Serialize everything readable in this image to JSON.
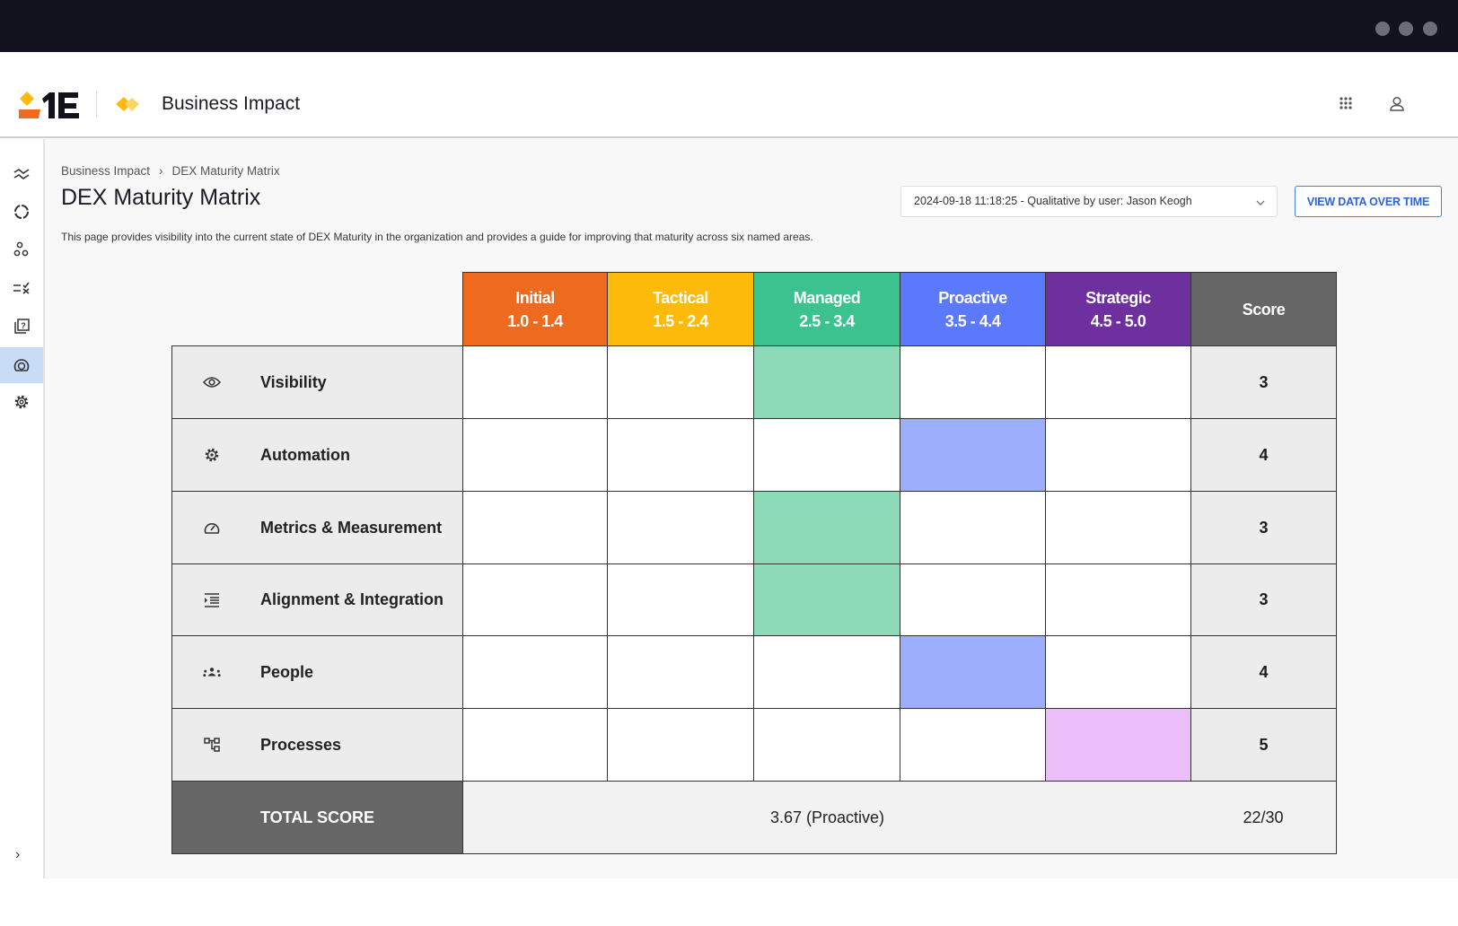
{
  "app": {
    "title": "Business Impact"
  },
  "header": {
    "icons": [
      "apps-grid-icon",
      "user-icon"
    ]
  },
  "sidebar": {
    "items": [
      "trend-icon",
      "cycle-icon",
      "nodes-icon",
      "checklist-icon",
      "help-book-icon",
      "gauge-icon",
      "gear-icon"
    ],
    "active_index": 5,
    "expand_icon": "chevron-right-icon"
  },
  "breadcrumb": {
    "items": [
      "Business Impact",
      "DEX Maturity Matrix"
    ],
    "separator": "›"
  },
  "page": {
    "title": "DEX Maturity Matrix",
    "description": "This page provides visibility into the current state of DEX Maturity in the organization and provides a guide for improving that maturity across six named areas."
  },
  "controls": {
    "snapshot_select": "2024-09-18 11:18:25 - Qualitative by user: Jason Keogh",
    "view_button": "VIEW DATA OVER TIME"
  },
  "matrix": {
    "levels": [
      {
        "name": "Initial",
        "range": "1.0 - 1.4",
        "color": "#EE6A1F",
        "fill": "#F6B48E"
      },
      {
        "name": "Tactical",
        "range": "1.5 - 2.4",
        "color": "#FDBA0B",
        "fill": "#FEDC85"
      },
      {
        "name": "Managed",
        "range": "2.5 - 3.4",
        "color": "#3CC28E",
        "fill": "#8DDAB8"
      },
      {
        "name": "Proactive",
        "range": "3.5 - 4.4",
        "color": "#5B79FB",
        "fill": "#9DAEFC"
      },
      {
        "name": "Strategic",
        "range": "4.5 - 5.0",
        "color": "#6E2F9F",
        "fill": "#EBBEF9"
      }
    ],
    "score_header": "Score",
    "rows": [
      {
        "label": "Visibility",
        "icon": "eye-icon",
        "level": 2,
        "score": "3"
      },
      {
        "label": "Automation",
        "icon": "gear-icon",
        "level": 3,
        "score": "4"
      },
      {
        "label": "Metrics & Measurement",
        "icon": "gauge-icon",
        "level": 2,
        "score": "3"
      },
      {
        "label": "Alignment & Integration",
        "icon": "indent-list-icon",
        "level": 2,
        "score": "3"
      },
      {
        "label": "People",
        "icon": "people-icon",
        "level": 3,
        "score": "4"
      },
      {
        "label": "Processes",
        "icon": "process-tree-icon",
        "level": 4,
        "score": "5"
      }
    ],
    "total_label": "TOTAL SCORE",
    "total_average": "3.67 (Proactive)",
    "total_score": "22/30"
  }
}
